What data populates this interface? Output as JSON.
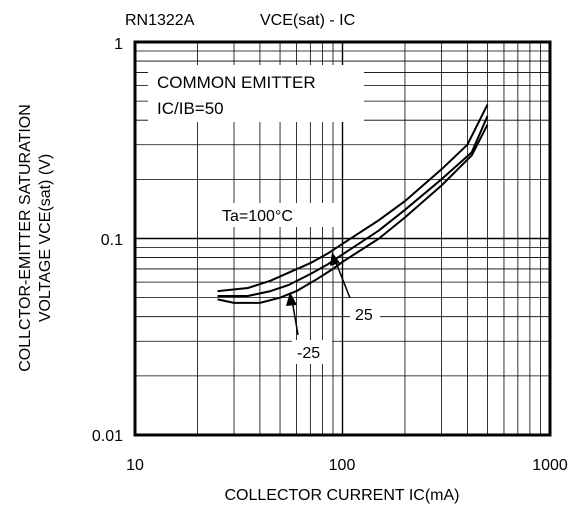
{
  "chart_data": {
    "type": "line",
    "part_number": "RN1322A",
    "title": "VCE(sat) - IC",
    "xlabel": "COLLECTOR CURRENT IC(mA)",
    "ylabel_line1": "COLLCTOR-EMITTER SATURATION",
    "ylabel_line2": "VOLTAGE VCE(sat) (V)",
    "x_scale": "log",
    "y_scale": "log",
    "xlim": [
      10,
      1000
    ],
    "ylim": [
      0.01,
      1
    ],
    "x_ticks": [
      "10",
      "100",
      "1000"
    ],
    "y_ticks": [
      "0.01",
      "0.1",
      "1"
    ],
    "grid": true,
    "conditions": [
      "COMMON EMITTER",
      "IC/IB=50"
    ],
    "series": [
      {
        "name": "Ta=100°C",
        "points": [
          [
            25,
            0.054
          ],
          [
            35,
            0.056
          ],
          [
            45,
            0.061
          ],
          [
            55,
            0.067
          ],
          [
            70,
            0.075
          ],
          [
            85,
            0.084
          ],
          [
            100,
            0.094
          ],
          [
            150,
            0.124
          ],
          [
            200,
            0.155
          ],
          [
            300,
            0.225
          ],
          [
            400,
            0.3
          ],
          [
            500,
            0.48
          ]
        ]
      },
      {
        "name": "25",
        "points": [
          [
            25,
            0.051
          ],
          [
            35,
            0.051
          ],
          [
            45,
            0.054
          ],
          [
            55,
            0.058
          ],
          [
            70,
            0.066
          ],
          [
            85,
            0.074
          ],
          [
            100,
            0.083
          ],
          [
            150,
            0.11
          ],
          [
            200,
            0.14
          ],
          [
            300,
            0.2
          ],
          [
            420,
            0.275
          ],
          [
            500,
            0.42
          ]
        ]
      },
      {
        "name": "-25",
        "points": [
          [
            25,
            0.049
          ],
          [
            30,
            0.047
          ],
          [
            40,
            0.047
          ],
          [
            50,
            0.05
          ],
          [
            60,
            0.054
          ],
          [
            75,
            0.062
          ],
          [
            90,
            0.07
          ],
          [
            100,
            0.076
          ],
          [
            150,
            0.1
          ],
          [
            200,
            0.128
          ],
          [
            300,
            0.186
          ],
          [
            420,
            0.265
          ],
          [
            500,
            0.38
          ]
        ]
      }
    ],
    "annotations": [
      "Ta=100°C",
      "25",
      "-25"
    ]
  }
}
